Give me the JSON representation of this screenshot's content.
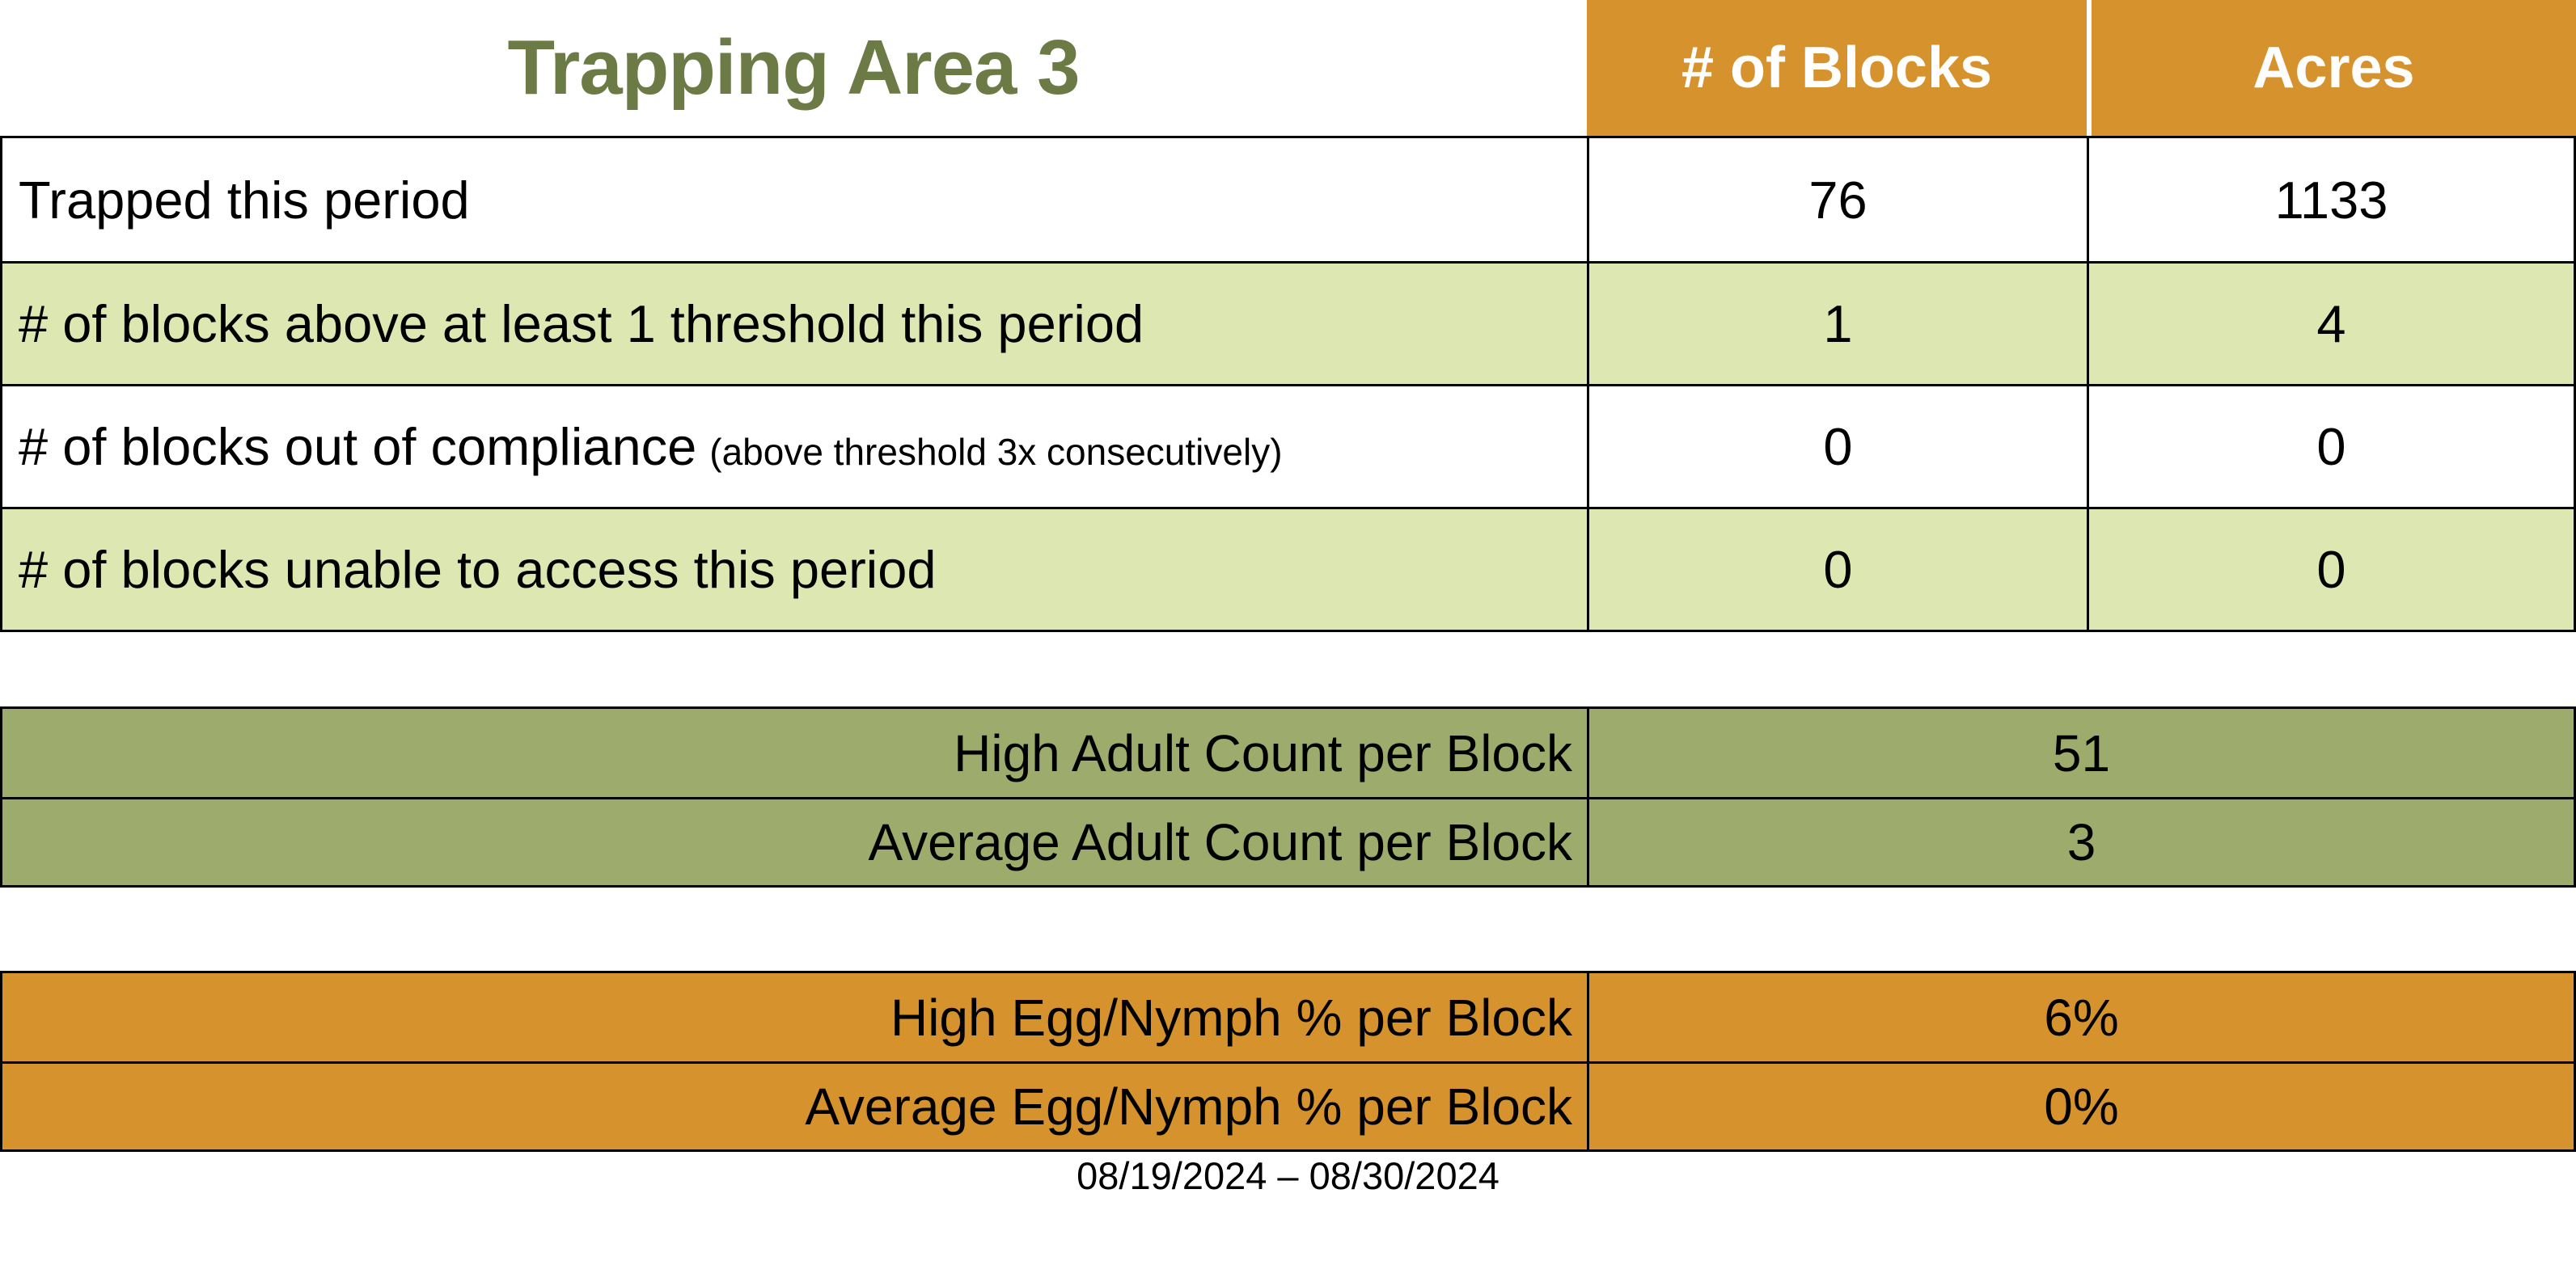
{
  "title": "Trapping Area 3",
  "date_range": "08/19/2024 – 08/30/2024",
  "colors": {
    "header_orange": "#D6922D",
    "row_light_green": "#DCE7B2",
    "adult_table_olive": "#9DAB6C",
    "title_green": "#6C7A45",
    "header_text": "#FFFFFF",
    "body_text": "#000000",
    "border": "#000000"
  },
  "summary_table": {
    "columns": [
      "# of Blocks",
      "Acres"
    ],
    "rows": [
      {
        "label": "Trapped this period",
        "note": "",
        "blocks": "76",
        "acres": "1133"
      },
      {
        "label": "# of blocks above at least 1 threshold this period",
        "note": "",
        "blocks": "1",
        "acres": "4"
      },
      {
        "label": "# of blocks out of compliance",
        "note": "(above threshold 3x consecutively)",
        "blocks": "0",
        "acres": "0"
      },
      {
        "label": "# of blocks unable to access this period",
        "note": "",
        "blocks": "0",
        "acres": "0"
      }
    ]
  },
  "adult_counts": {
    "rows": [
      {
        "label": "High Adult Count per Block",
        "value": "51"
      },
      {
        "label": "Average Adult Count per Block",
        "value": "3"
      }
    ]
  },
  "egg_nymph": {
    "rows": [
      {
        "label": "High Egg/Nymph % per Block",
        "value": "6%"
      },
      {
        "label": "Average Egg/Nymph % per Block",
        "value": "0%"
      }
    ]
  }
}
